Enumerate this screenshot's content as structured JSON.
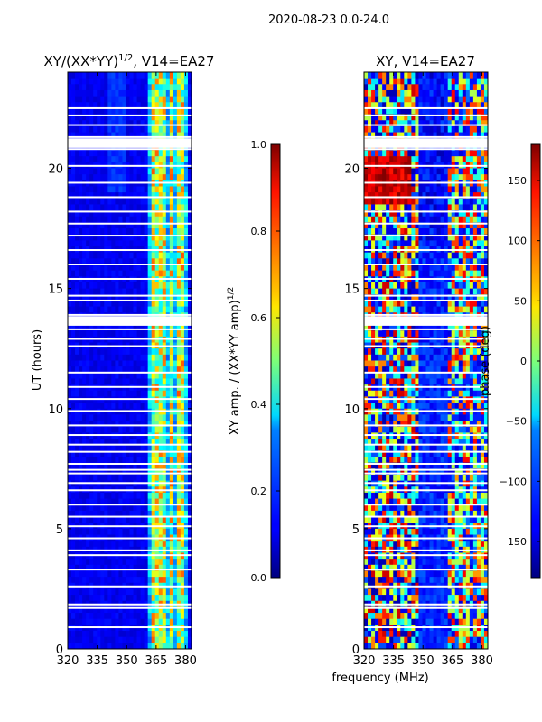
{
  "suptitle": "2020-08-23 0.0-24.0",
  "xlabel_shared": "frequency (MHz)",
  "chart_data": [
    {
      "type": "heatmap",
      "title": "XY/(XX*YY)^1/2, V14=EA27",
      "title_main": "XY/(XX*YY)",
      "title_exp": "1/2",
      "title_tail": ", V14=EA27",
      "xlabel": "",
      "ylabel": "UT (hours)",
      "xlim": [
        320,
        383
      ],
      "ylim": [
        0,
        24
      ],
      "xticks": [
        320,
        335,
        350,
        365,
        380
      ],
      "yticks": [
        0,
        5,
        10,
        15,
        20
      ],
      "colormap": "jet",
      "colorbar": {
        "label": "XY amp. / (XX*YY amp)^1/2",
        "label_main": "XY amp. / (XX*YY amp)",
        "label_exp": "1/2",
        "range": [
          0.0,
          1.0
        ],
        "ticks": [
          "0.0",
          "0.2",
          "0.4",
          "0.6",
          "0.8",
          "1.0"
        ],
        "tick_values": [
          0.0,
          0.2,
          0.4,
          0.6,
          0.8,
          1.0
        ]
      },
      "bright_bands_mhz": [
        [
          363,
          366
        ],
        [
          367,
          370
        ],
        [
          371,
          374
        ],
        [
          375,
          377
        ],
        [
          378,
          380
        ]
      ],
      "flagged_ut_hours": [
        0.9,
        1.7,
        1.85,
        2.6,
        3.3,
        3.9,
        4.1,
        4.6,
        5.1,
        5.5,
        6.0,
        6.6,
        6.9,
        7.3,
        7.45,
        7.7,
        8.2,
        8.5,
        8.9,
        9.3,
        9.9,
        10.4,
        10.9,
        11.5,
        12.6,
        12.9,
        13.3,
        13.75,
        13.9,
        14.5,
        14.7,
        15.4,
        16.0,
        16.6,
        17.2,
        17.7,
        18.2,
        18.8,
        19.4,
        20.1,
        20.8,
        21.1,
        21.3,
        21.8,
        22.2,
        22.5
      ]
    },
    {
      "type": "heatmap",
      "title": "XY, V14=EA27",
      "xlabel": "frequency (MHz)",
      "ylabel": "",
      "xlim": [
        320,
        383
      ],
      "ylim": [
        0,
        24
      ],
      "xticks": [
        320,
        335,
        350,
        365,
        380
      ],
      "yticks": [
        0,
        5,
        10,
        15,
        20
      ],
      "colormap": "jet",
      "colorbar": {
        "label": "phase (deg)",
        "range": [
          -180,
          180
        ],
        "ticks": [
          "−150",
          "−100",
          "−50",
          "0",
          "50",
          "100",
          "150"
        ],
        "tick_values": [
          -150,
          -100,
          -50,
          0,
          50,
          100,
          150
        ]
      },
      "flagged_ut_hours": [
        0.9,
        1.7,
        1.85,
        2.6,
        3.3,
        3.9,
        4.1,
        4.6,
        5.1,
        5.5,
        6.0,
        6.6,
        6.9,
        7.3,
        7.45,
        7.7,
        8.2,
        8.5,
        8.9,
        9.3,
        9.9,
        10.4,
        10.9,
        11.5,
        12.6,
        12.9,
        13.3,
        13.75,
        13.9,
        14.5,
        14.7,
        15.4,
        16.0,
        16.6,
        17.2,
        17.7,
        18.2,
        18.8,
        19.4,
        20.1,
        20.8,
        21.1,
        21.3,
        21.8,
        22.2,
        22.5
      ]
    }
  ]
}
